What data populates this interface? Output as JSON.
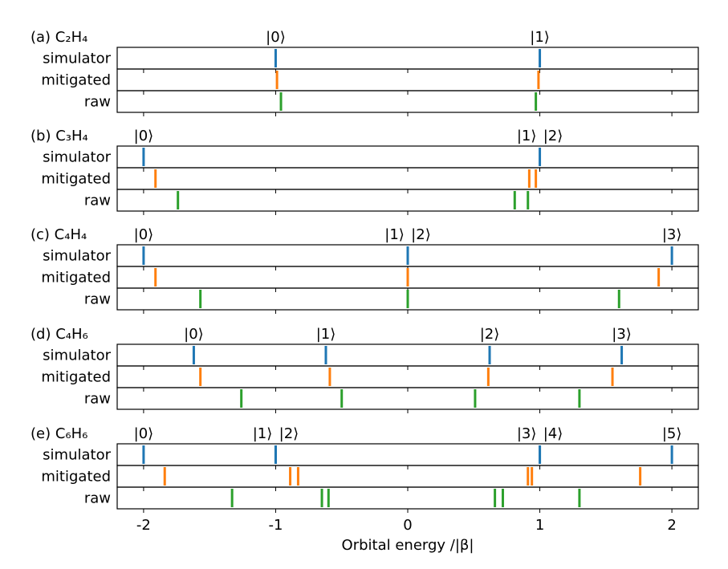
{
  "chart_data": {
    "type": "scatter",
    "xlabel": "Orbital energy /|β|",
    "xlim": [
      -2.2,
      2.2
    ],
    "x_ticks": [
      -2,
      -1,
      0,
      1,
      2
    ],
    "x_tick_labels": [
      "-2",
      "-1",
      "0",
      "1",
      "2"
    ],
    "row_labels": [
      "simulator",
      "mitigated",
      "raw"
    ],
    "colors": {
      "simulator": "#1f77b4",
      "mitigated": "#ff7f0e",
      "raw": "#2ca02c"
    },
    "panels": [
      {
        "title": "(a) C₂H₄",
        "state_labels": [
          {
            "text": "|0⟩",
            "x": -1.0
          },
          {
            "text": "|1⟩",
            "x": 1.0
          }
        ],
        "simulator": [
          -1.0,
          1.0
        ],
        "mitigated": [
          -0.99,
          0.99
        ],
        "raw": [
          -0.96,
          0.97
        ]
      },
      {
        "title": "(b) C₃H₄",
        "state_labels": [
          {
            "text": "|0⟩",
            "x": -2.0
          },
          {
            "text": "|1⟩",
            "x": 0.9
          },
          {
            "text": "|2⟩",
            "x": 1.1
          }
        ],
        "simulator": [
          -2.0,
          1.0
        ],
        "mitigated": [
          -1.91,
          0.92,
          0.97
        ],
        "raw": [
          -1.74,
          0.81,
          0.91
        ]
      },
      {
        "title": "(c) C₄H₄",
        "state_labels": [
          {
            "text": "|0⟩",
            "x": -2.0
          },
          {
            "text": "|1⟩",
            "x": -0.1
          },
          {
            "text": "|2⟩",
            "x": 0.1
          },
          {
            "text": "|3⟩",
            "x": 2.0
          }
        ],
        "simulator": [
          -2.0,
          0.0,
          2.0
        ],
        "mitigated": [
          -1.91,
          0.0,
          1.9
        ],
        "raw": [
          -1.57,
          0.0,
          1.6
        ]
      },
      {
        "title": "(d) C₄H₆",
        "state_labels": [
          {
            "text": "|0⟩",
            "x": -1.62
          },
          {
            "text": "|1⟩",
            "x": -0.62
          },
          {
            "text": "|2⟩",
            "x": 0.62
          },
          {
            "text": "|3⟩",
            "x": 1.62
          }
        ],
        "simulator": [
          -1.62,
          -0.62,
          0.62,
          1.62
        ],
        "mitigated": [
          -1.57,
          -0.59,
          0.61,
          1.55
        ],
        "raw": [
          -1.26,
          -0.5,
          0.51,
          1.3
        ]
      },
      {
        "title": "(e) C₆H₆",
        "state_labels": [
          {
            "text": "|0⟩",
            "x": -2.0
          },
          {
            "text": "|1⟩",
            "x": -1.1
          },
          {
            "text": "|2⟩",
            "x": -0.9
          },
          {
            "text": "|3⟩",
            "x": 0.9
          },
          {
            "text": "|4⟩",
            "x": 1.1
          },
          {
            "text": "|5⟩",
            "x": 2.0
          }
        ],
        "simulator": [
          -2.0,
          -1.0,
          -1.0,
          1.0,
          1.0,
          2.0
        ],
        "mitigated": [
          -1.84,
          -0.89,
          -0.83,
          0.91,
          0.94,
          1.76
        ],
        "raw": [
          -1.33,
          -0.65,
          -0.6,
          0.66,
          0.72,
          1.3
        ]
      }
    ]
  }
}
